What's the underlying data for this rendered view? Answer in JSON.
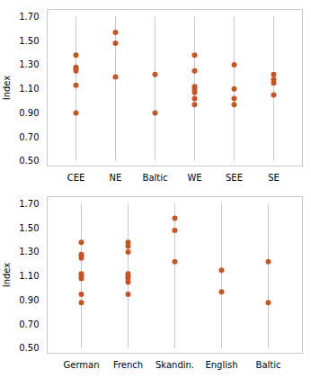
{
  "chart_data": [
    {
      "type": "strip",
      "categories": [
        "CEE",
        "NE",
        "Baltic",
        "WE",
        "SEE",
        "SE"
      ],
      "values": [
        [
          0.9,
          1.13,
          1.25,
          1.27,
          1.28,
          1.38
        ],
        [
          1.2,
          1.48,
          1.57
        ],
        [
          0.9,
          1.22
        ],
        [
          0.97,
          1.02,
          1.07,
          1.1,
          1.12,
          1.25,
          1.38
        ],
        [
          0.97,
          1.02,
          1.1,
          1.3
        ],
        [
          1.05,
          1.15,
          1.18,
          1.22
        ]
      ],
      "vline_range": [
        0.5,
        1.7
      ],
      "color": "#C0572A",
      "ylabel": "Index",
      "ylim": [
        0.46,
        1.76
      ],
      "yticks": [
        {
          "value": 0.5,
          "label": "0.50"
        },
        {
          "value": 0.7,
          "label": "0.70"
        },
        {
          "value": 0.9,
          "label": "0.90"
        },
        {
          "value": 1.1,
          "label": "1.10"
        },
        {
          "value": 1.3,
          "label": "1.30"
        },
        {
          "value": 1.5,
          "label": "1.50"
        },
        {
          "value": 1.7,
          "label": "1.70"
        }
      ],
      "grid": false
    },
    {
      "type": "strip",
      "categories": [
        "German",
        "French",
        "Skandin.",
        "English",
        "Baltic"
      ],
      "values": [
        [
          0.88,
          0.95,
          1.08,
          1.1,
          1.12,
          1.25,
          1.27,
          1.28,
          1.38
        ],
        [
          0.95,
          1.05,
          1.08,
          1.1,
          1.12,
          1.3,
          1.35,
          1.38
        ],
        [
          1.22,
          1.48,
          1.58
        ],
        [
          0.97,
          1.15
        ],
        [
          0.88,
          1.22
        ]
      ],
      "vline_range": [
        0.5,
        1.7
      ],
      "color": "#C0572A",
      "ylabel": "Index",
      "ylim": [
        0.46,
        1.76
      ],
      "yticks": [
        {
          "value": 0.5,
          "label": "0.50"
        },
        {
          "value": 0.7,
          "label": "0.70"
        },
        {
          "value": 0.9,
          "label": "0.90"
        },
        {
          "value": 1.1,
          "label": "1.10"
        },
        {
          "value": 1.3,
          "label": "1.30"
        },
        {
          "value": 1.5,
          "label": "1.50"
        },
        {
          "value": 1.7,
          "label": "1.70"
        }
      ],
      "grid": false
    }
  ]
}
